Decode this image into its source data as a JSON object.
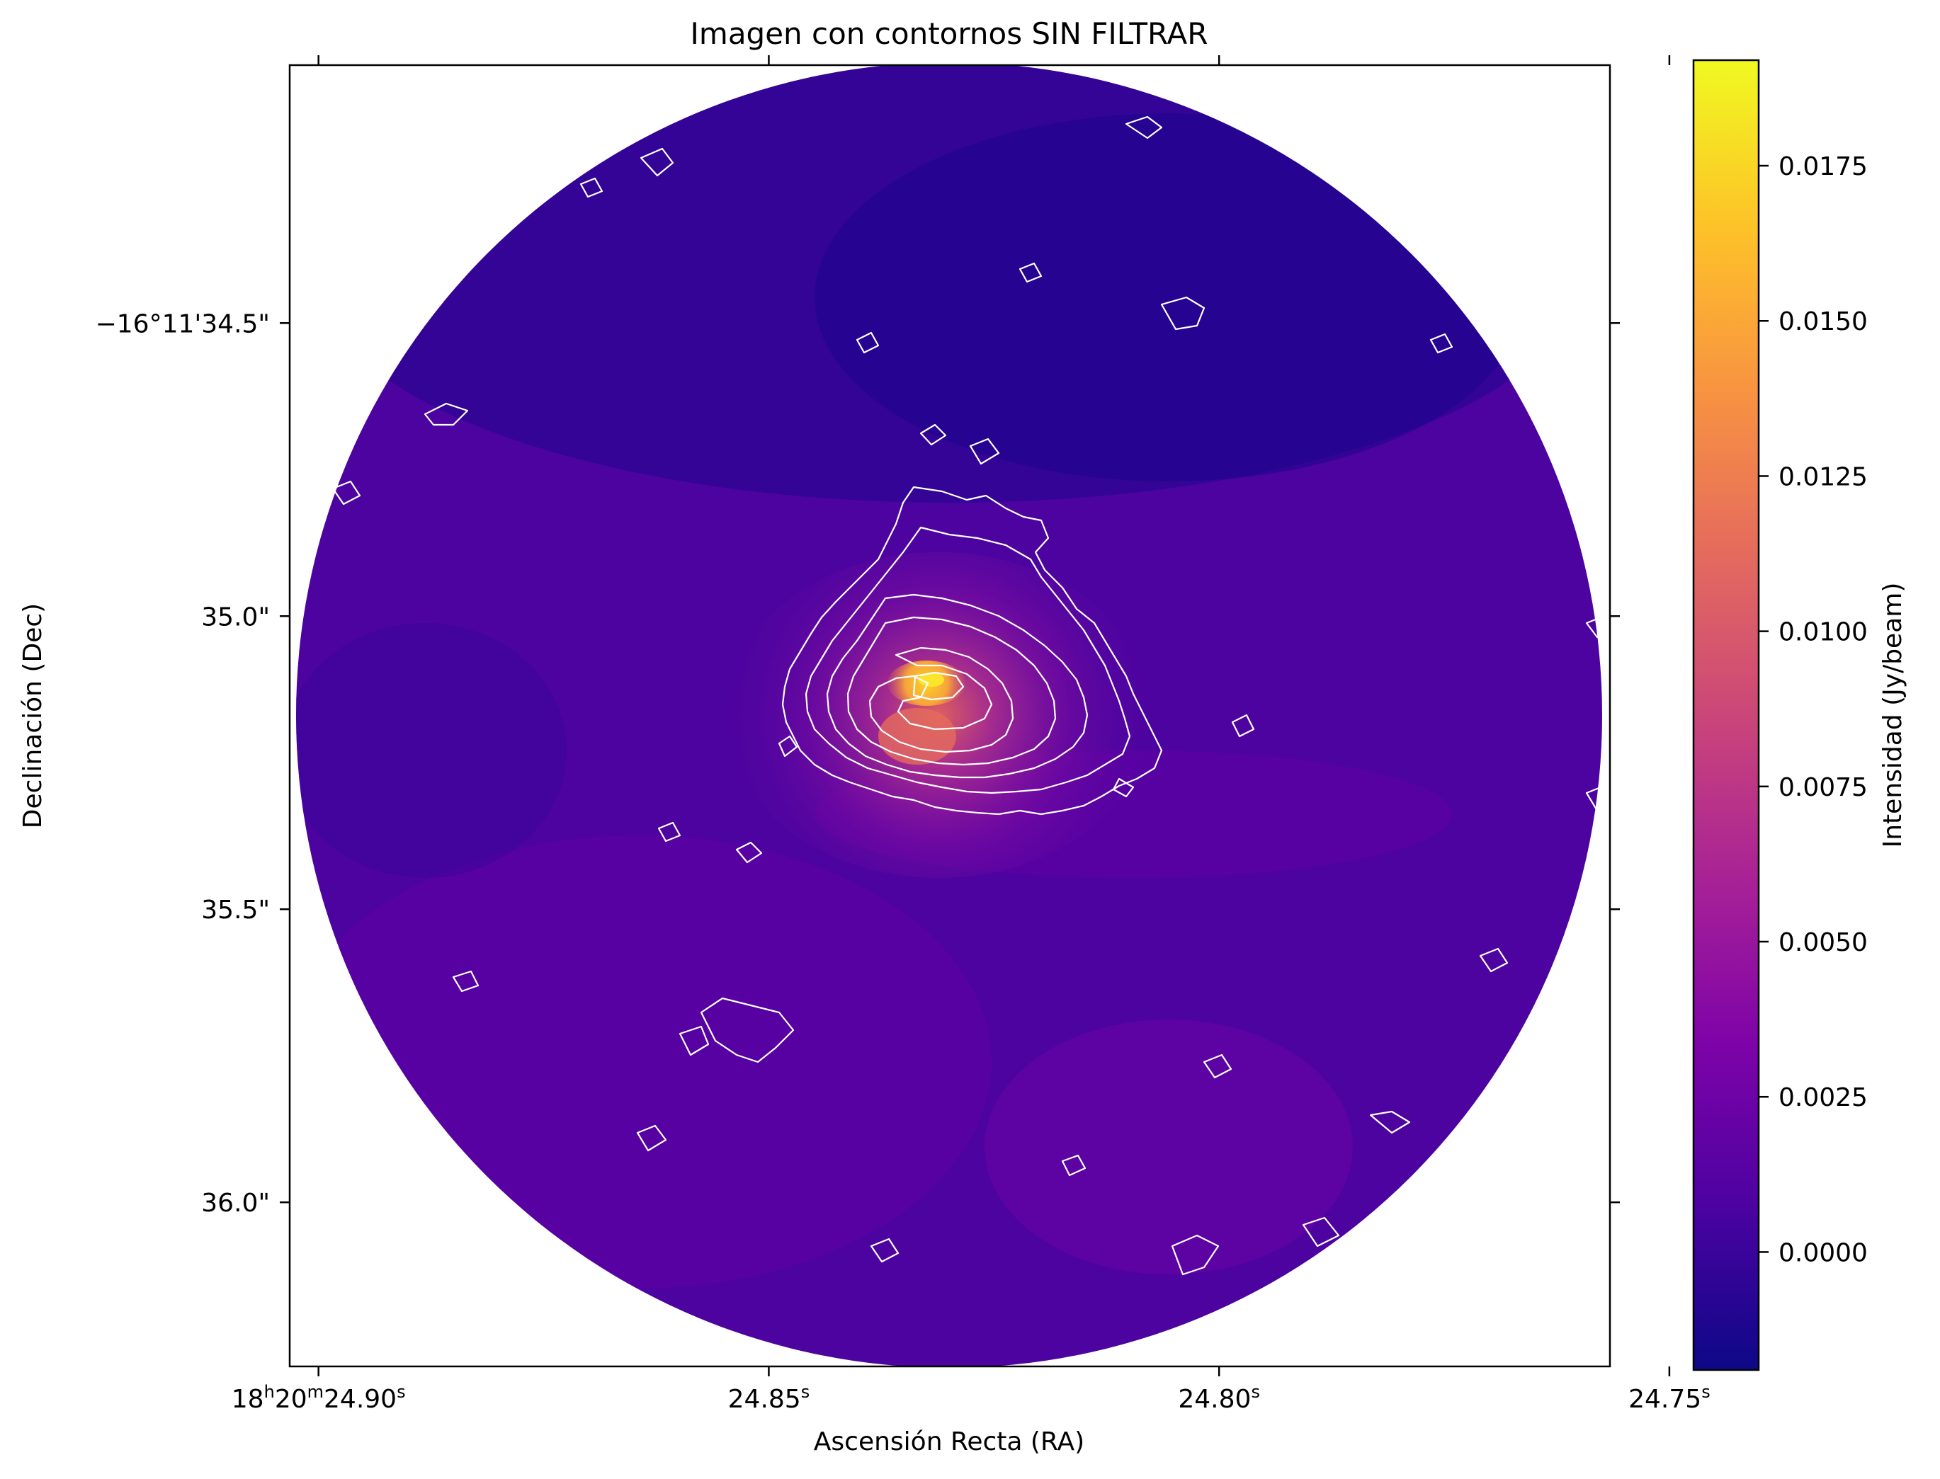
{
  "chart_data": {
    "type": "heatmap",
    "title": "Imagen con contornos SIN FILTRAR",
    "xlabel": "Ascensión Recta (RA)",
    "ylabel": "Declinación (Dec)",
    "x_ticks": [
      {
        "value": 24.9,
        "label_main": "18",
        "sup1": "h",
        "mid": "20",
        "sup2": "m",
        "label_end": "24.90",
        "sup3": "s"
      },
      {
        "value": 24.85,
        "label_end": "24.85",
        "sup3": "s"
      },
      {
        "value": 24.8,
        "label_end": "24.80",
        "sup3": "s"
      },
      {
        "value": 24.75,
        "label_end": "24.75",
        "sup3": "s"
      }
    ],
    "y_ticks": [
      {
        "value": 34.5,
        "label": "−16°11'34.5\""
      },
      {
        "value": 35.0,
        "label": "35.0\""
      },
      {
        "value": 35.5,
        "label": "35.5\""
      },
      {
        "value": 36.0,
        "label": "36.0\""
      }
    ],
    "xlim": [
      24.9032,
      24.7566
    ],
    "ylim": [
      34.06,
      36.28
    ],
    "colorbar": {
      "label": "Intensidad (Jy/beam)",
      "range": [
        -0.0019,
        0.0192
      ],
      "ticks": [
        0.0,
        0.0025,
        0.005,
        0.0075,
        0.01,
        0.0125,
        0.015,
        0.0175
      ],
      "tick_labels": [
        "0.0000",
        "0.0025",
        "0.0050",
        "0.0075",
        "0.0100",
        "0.0125",
        "0.0150",
        "0.0175"
      ],
      "colormap": "plasma"
    },
    "image": {
      "shape": "circular field",
      "center_ra": 24.829,
      "center_dec": 35.16,
      "peak": {
        "ra": 24.826,
        "dec": 35.1,
        "value": 0.0185
      },
      "contour_color": "#ffffff"
    }
  }
}
